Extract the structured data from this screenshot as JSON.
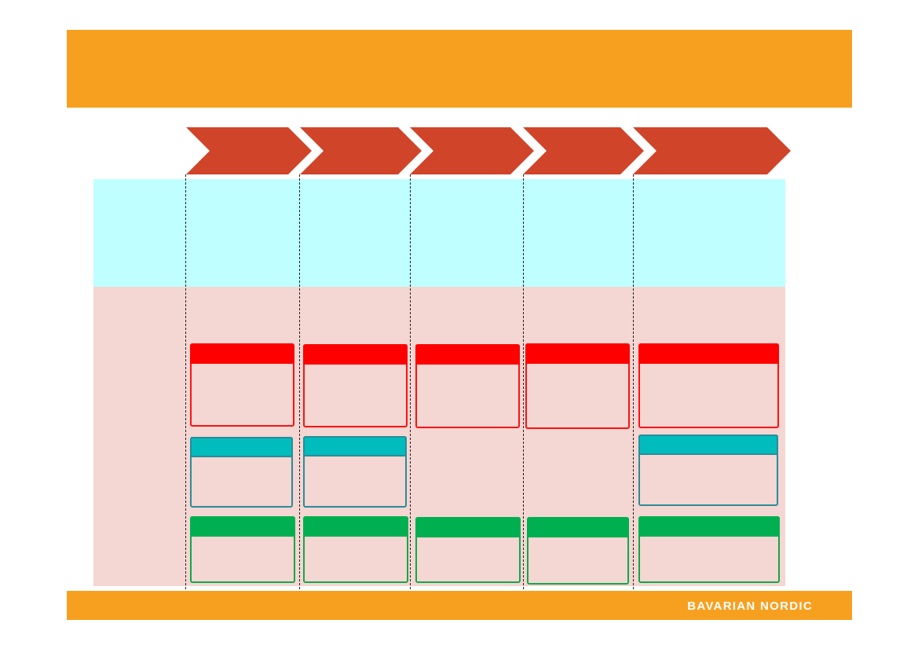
{
  "colors": {
    "title_bar": "#f7a020",
    "footer_bar": "#f7a020",
    "arrow": "#d0442a",
    "cyan_band": "#bfffff",
    "pink_band": "#f4d6d2",
    "red_box": "#ff0000",
    "teal_box": "#00bcbc",
    "green_box": "#00b050"
  },
  "footer": {
    "logo": "BAVARIAN NORDIC"
  },
  "stages": [
    {
      "red": true,
      "teal": true,
      "green": true
    },
    {
      "red": true,
      "teal": true,
      "green": true
    },
    {
      "red": true,
      "teal": false,
      "green": true
    },
    {
      "red": true,
      "teal": false,
      "green": true
    },
    {
      "red": true,
      "teal": true,
      "green": true
    }
  ]
}
